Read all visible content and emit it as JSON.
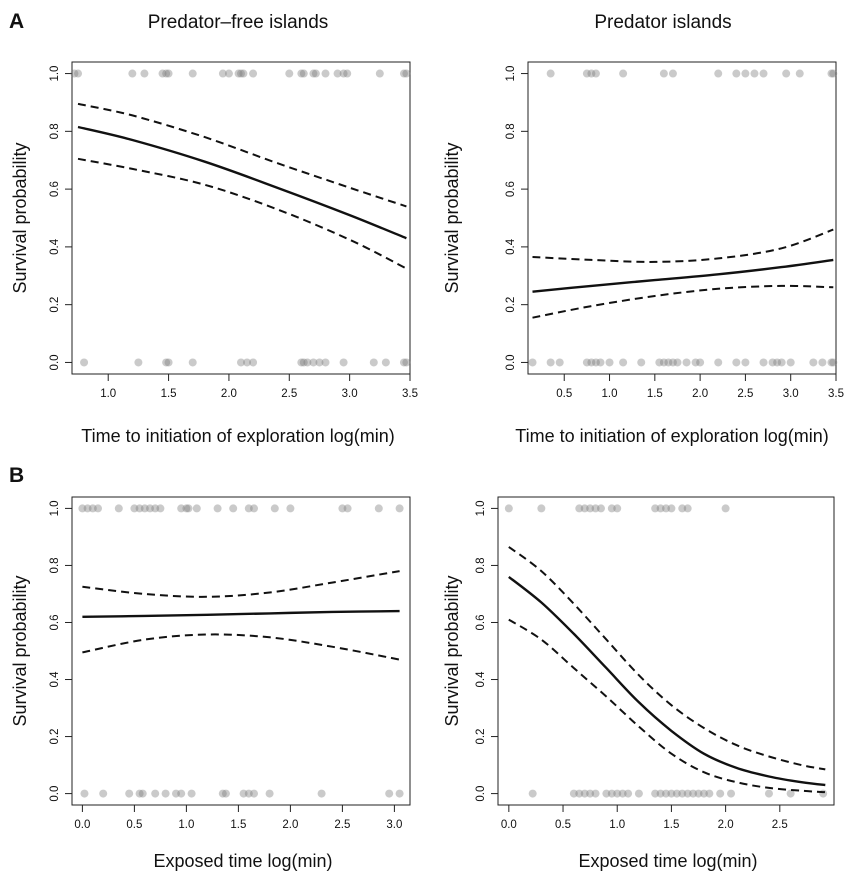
{
  "panel_letters": [
    "A",
    "B"
  ],
  "column_titles": [
    "Predator–free islands",
    "Predator islands"
  ],
  "chart_data": [
    {
      "type": "scatter",
      "panel": "A",
      "title": "Predator–free islands",
      "xlabel": "Time to initiation of exploration log(min)",
      "ylabel": "Survival probability",
      "xlim": [
        0.7,
        3.5
      ],
      "ylim": [
        0,
        1
      ],
      "xticks": [
        1.0,
        1.5,
        2.0,
        2.5,
        3.0,
        3.5
      ],
      "xtick_labels": [
        "1.0",
        "1.5",
        "2.0",
        "2.5",
        "3.0",
        "3.5"
      ],
      "yticks": [
        0,
        0.2,
        0.4,
        0.6,
        0.8,
        1.0
      ],
      "ytick_labels": [
        "0.0",
        "0.2",
        "0.4",
        "0.6",
        "0.8",
        "1.0"
      ],
      "grid": false,
      "points_y1": [
        0.72,
        0.75,
        1.2,
        1.3,
        1.45,
        1.48,
        1.5,
        1.7,
        1.95,
        2.0,
        2.08,
        2.1,
        2.12,
        2.2,
        2.5,
        2.6,
        2.62,
        2.7,
        2.72,
        2.8,
        2.9,
        2.95,
        2.98,
        3.25,
        3.45,
        3.47
      ],
      "points_y0": [
        0.8,
        1.25,
        1.48,
        1.5,
        1.7,
        2.1,
        2.15,
        2.2,
        2.6,
        2.62,
        2.65,
        2.7,
        2.75,
        2.8,
        2.95,
        3.2,
        3.3,
        3.45,
        3.47
      ],
      "fit": {
        "x": [
          0.75,
          1.2,
          1.8,
          2.4,
          3.0,
          3.47
        ],
        "y": [
          0.815,
          0.77,
          0.695,
          0.605,
          0.51,
          0.43
        ]
      },
      "ci_upper": {
        "x": [
          0.75,
          1.2,
          1.8,
          2.4,
          3.0,
          3.47
        ],
        "y": [
          0.895,
          0.855,
          0.78,
          0.69,
          0.605,
          0.54
        ]
      },
      "ci_lower": {
        "x": [
          0.75,
          1.2,
          1.8,
          2.4,
          3.0,
          3.47
        ],
        "y": [
          0.705,
          0.67,
          0.615,
          0.53,
          0.425,
          0.325
        ]
      }
    },
    {
      "type": "scatter",
      "panel": "A",
      "title": "Predator islands",
      "xlabel": "Time to initiation of exploration log(min)",
      "ylabel": "Survival probability",
      "xlim": [
        0.1,
        3.5
      ],
      "ylim": [
        0,
        1
      ],
      "xticks": [
        0.5,
        1.0,
        1.5,
        2.0,
        2.5,
        3.0,
        3.5
      ],
      "xtick_labels": [
        "0.5",
        "1.0",
        "1.5",
        "2.0",
        "2.5",
        "3.0",
        "3.5"
      ],
      "yticks": [
        0,
        0.2,
        0.4,
        0.6,
        0.8,
        1.0
      ],
      "ytick_labels": [
        "0.0",
        "0.2",
        "0.4",
        "0.6",
        "0.8",
        "1.0"
      ],
      "grid": false,
      "points_y1": [
        0.35,
        0.75,
        0.8,
        0.85,
        1.15,
        1.6,
        1.7,
        2.2,
        2.4,
        2.5,
        2.6,
        2.7,
        2.95,
        3.1,
        3.45,
        3.47
      ],
      "points_y0": [
        0.15,
        0.35,
        0.45,
        0.75,
        0.8,
        0.85,
        0.9,
        1.0,
        1.15,
        1.35,
        1.55,
        1.6,
        1.65,
        1.7,
        1.75,
        1.85,
        1.95,
        2.0,
        2.2,
        2.4,
        2.5,
        2.7,
        2.8,
        2.85,
        2.9,
        3.0,
        3.25,
        3.35,
        3.45,
        3.47
      ],
      "fit": {
        "x": [
          0.15,
          0.8,
          1.5,
          2.2,
          2.9,
          3.47
        ],
        "y": [
          0.245,
          0.265,
          0.285,
          0.305,
          0.33,
          0.355
        ]
      },
      "ci_upper": {
        "x": [
          0.15,
          0.8,
          1.5,
          2.2,
          2.9,
          3.47
        ],
        "y": [
          0.365,
          0.355,
          0.348,
          0.36,
          0.395,
          0.46
        ]
      },
      "ci_lower": {
        "x": [
          0.15,
          0.8,
          1.5,
          2.2,
          2.9,
          3.47
        ],
        "y": [
          0.155,
          0.195,
          0.23,
          0.255,
          0.265,
          0.26
        ]
      }
    },
    {
      "type": "scatter",
      "panel": "B",
      "title": "",
      "xlabel": "Exposed time log(min)",
      "ylabel": "Survival probability",
      "xlim": [
        -0.1,
        3.15
      ],
      "ylim": [
        0,
        1
      ],
      "xticks": [
        0.0,
        0.5,
        1.0,
        1.5,
        2.0,
        2.5,
        3.0
      ],
      "xtick_labels": [
        "0.0",
        "0.5",
        "1.0",
        "1.5",
        "2.0",
        "2.5",
        "3.0"
      ],
      "yticks": [
        0,
        0.2,
        0.4,
        0.6,
        0.8,
        1.0
      ],
      "ytick_labels": [
        "0.0",
        "0.2",
        "0.4",
        "0.6",
        "0.8",
        "1.0"
      ],
      "grid": false,
      "points_y1": [
        0.0,
        0.05,
        0.1,
        0.15,
        0.35,
        0.5,
        0.55,
        0.6,
        0.65,
        0.7,
        0.75,
        0.95,
        1.0,
        1.02,
        1.1,
        1.3,
        1.45,
        1.6,
        1.65,
        1.85,
        2.0,
        2.5,
        2.55,
        2.85,
        3.05
      ],
      "points_y0": [
        0.02,
        0.2,
        0.45,
        0.55,
        0.58,
        0.7,
        0.8,
        0.9,
        0.95,
        1.05,
        1.35,
        1.38,
        1.55,
        1.6,
        1.65,
        1.8,
        2.3,
        2.95,
        3.05
      ],
      "fit": {
        "x": [
          0.0,
          0.6,
          1.2,
          1.8,
          2.4,
          3.05
        ],
        "y": [
          0.62,
          0.623,
          0.627,
          0.632,
          0.637,
          0.64
        ]
      },
      "ci_upper": {
        "x": [
          0.0,
          0.6,
          1.2,
          1.8,
          2.4,
          3.05
        ],
        "y": [
          0.725,
          0.7,
          0.69,
          0.705,
          0.74,
          0.78
        ]
      },
      "ci_lower": {
        "x": [
          0.0,
          0.6,
          1.2,
          1.8,
          2.4,
          3.05
        ],
        "y": [
          0.495,
          0.54,
          0.558,
          0.548,
          0.515,
          0.47
        ]
      }
    },
    {
      "type": "scatter",
      "panel": "B",
      "title": "",
      "xlabel": "Exposed time log(min)",
      "ylabel": "Survival probability",
      "xlim": [
        -0.1,
        3.0
      ],
      "ylim": [
        0,
        1
      ],
      "xticks": [
        0.0,
        0.5,
        1.0,
        1.5,
        2.0,
        2.5
      ],
      "xtick_labels": [
        "0.0",
        "0.5",
        "1.0",
        "1.5",
        "2.0",
        "2.5"
      ],
      "yticks": [
        0,
        0.2,
        0.4,
        0.6,
        0.8,
        1.0
      ],
      "ytick_labels": [
        "0.0",
        "0.2",
        "0.4",
        "0.6",
        "0.8",
        "1.0"
      ],
      "grid": false,
      "points_y1": [
        0.0,
        0.3,
        0.65,
        0.7,
        0.75,
        0.8,
        0.85,
        0.95,
        1.0,
        1.35,
        1.4,
        1.45,
        1.5,
        1.6,
        1.65,
        2.0
      ],
      "points_y0": [
        0.22,
        0.6,
        0.65,
        0.7,
        0.75,
        0.8,
        0.9,
        0.95,
        1.0,
        1.05,
        1.1,
        1.2,
        1.35,
        1.4,
        1.45,
        1.5,
        1.55,
        1.6,
        1.65,
        1.7,
        1.75,
        1.8,
        1.85,
        1.95,
        2.05,
        2.4,
        2.6,
        2.9
      ],
      "fit": {
        "x": [
          0.0,
          0.3,
          0.6,
          0.9,
          1.2,
          1.5,
          1.8,
          2.1,
          2.4,
          2.7,
          2.92
        ],
        "y": [
          0.76,
          0.67,
          0.56,
          0.44,
          0.32,
          0.22,
          0.14,
          0.09,
          0.06,
          0.04,
          0.03
        ]
      },
      "ci_upper": {
        "x": [
          0.0,
          0.3,
          0.6,
          0.9,
          1.2,
          1.5,
          1.8,
          2.1,
          2.4,
          2.7,
          2.92
        ],
        "y": [
          0.865,
          0.78,
          0.665,
          0.54,
          0.415,
          0.31,
          0.23,
          0.17,
          0.13,
          0.1,
          0.085
        ]
      },
      "ci_lower": {
        "x": [
          0.0,
          0.3,
          0.6,
          0.9,
          1.2,
          1.5,
          1.8,
          2.1,
          2.4,
          2.7,
          2.92
        ],
        "y": [
          0.61,
          0.54,
          0.44,
          0.34,
          0.235,
          0.14,
          0.075,
          0.04,
          0.02,
          0.01,
          0.005
        ]
      }
    }
  ]
}
